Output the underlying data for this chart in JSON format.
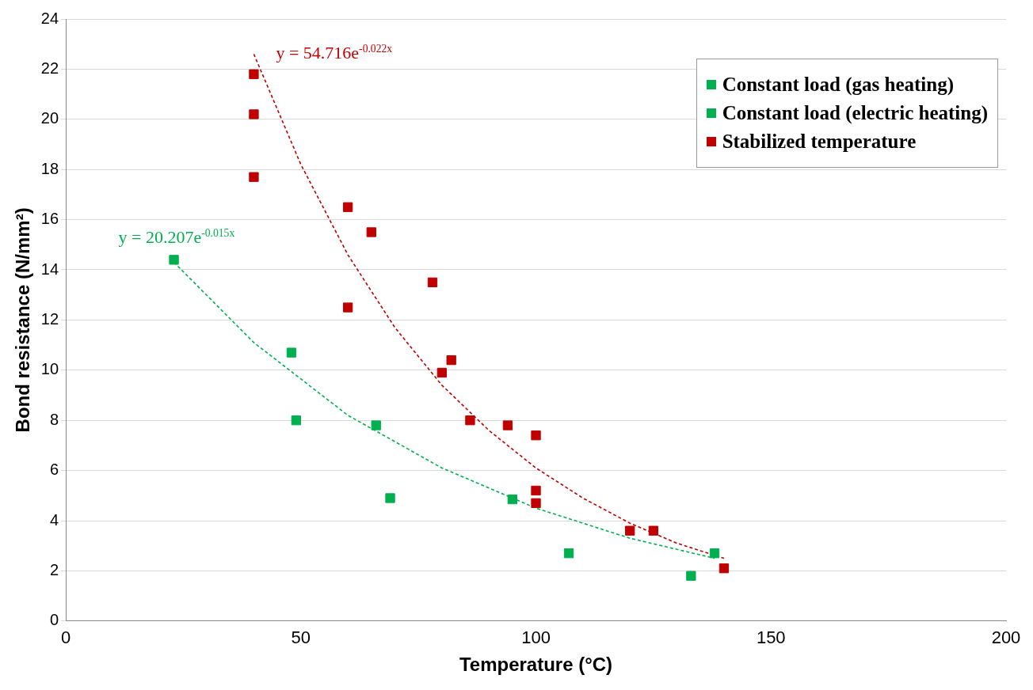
{
  "chart_data": {
    "type": "scatter",
    "xlabel": "Temperature (°C)",
    "ylabel": "Bond resistance (N/mm²)",
    "xlim": [
      0,
      200
    ],
    "xticks": [
      0,
      50,
      100,
      150,
      200
    ],
    "ylim": [
      0,
      24
    ],
    "yticks": [
      0,
      2,
      4,
      6,
      8,
      10,
      12,
      14,
      16,
      18,
      20,
      22,
      24
    ],
    "grid": "y",
    "legend": "top right",
    "marker": "square",
    "series": [
      {
        "name": "Constant load (gas heating)",
        "color": "#00b050",
        "x": [
          48,
          49,
          69,
          107,
          133
        ],
        "values": [
          10.7,
          8.0,
          4.9,
          2.7,
          1.8
        ]
      },
      {
        "name": "Constant load (electric heating)",
        "color": "#00b050",
        "x": [
          23,
          66,
          95,
          138
        ],
        "values": [
          14.4,
          7.8,
          4.85,
          2.7
        ]
      },
      {
        "name": "Stabilized temperature",
        "color": "#c00000",
        "x": [
          40,
          40,
          40,
          60,
          65,
          60,
          78,
          80,
          82,
          86,
          94,
          100,
          100,
          100,
          120,
          125,
          140
        ],
        "values": [
          21.8,
          20.2,
          17.7,
          16.5,
          15.5,
          12.5,
          13.5,
          9.9,
          10.4,
          8.0,
          7.8,
          7.4,
          5.2,
          4.7,
          3.6,
          3.6,
          2.1
        ]
      },
      {
        "type": "line",
        "color": "#c00000",
        "line_style": "dashed",
        "marker": "none",
        "x": [
          40,
          50,
          60,
          70,
          80,
          90,
          100,
          110,
          120,
          130,
          140
        ],
        "values": [
          22.6,
          18.2,
          14.6,
          11.7,
          9.4,
          7.6,
          6.1,
          4.9,
          3.9,
          3.1,
          2.5
        ]
      },
      {
        "type": "line",
        "color": "#00b050",
        "line_style": "dashed",
        "marker": "none",
        "x": [
          23,
          40,
          60,
          80,
          100,
          120,
          138
        ],
        "values": [
          14.3,
          11.1,
          8.2,
          6.1,
          4.5,
          3.3,
          2.5
        ]
      }
    ],
    "annotations": [
      "y = 54.716e$^{-0.022x}$",
      "y = 20.207e$^{-0.015x}$"
    ]
  }
}
